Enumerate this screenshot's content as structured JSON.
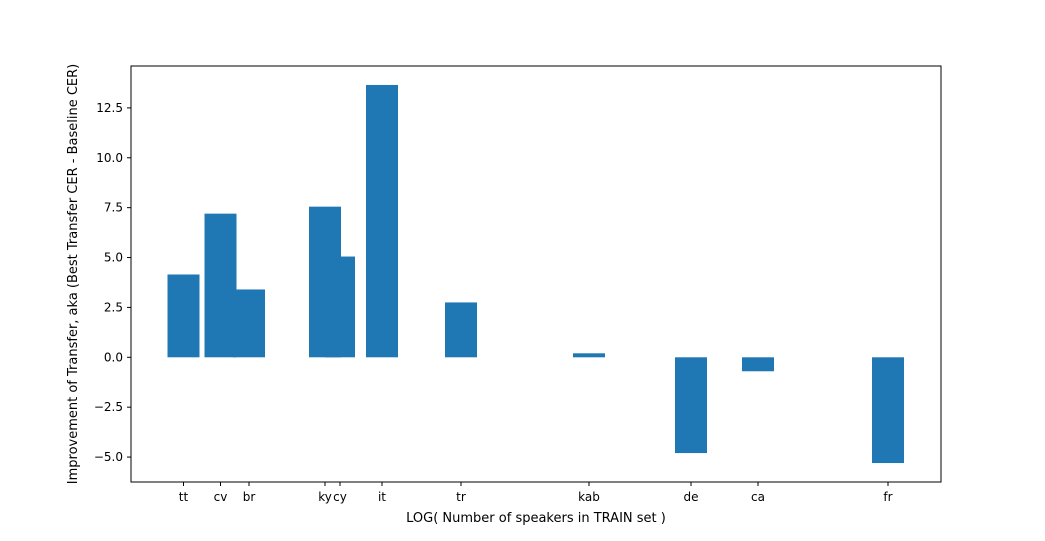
{
  "chart_data": {
    "type": "bar",
    "title": "",
    "xlabel": "LOG( Number of speakers in TRAIN set )",
    "ylabel": "Improvement of Transfer, aka (Best Transfer CER - Baseline CER)",
    "x_scale": "log",
    "x_tick_placement": "each label sits at its bar's x position",
    "ylim": [
      -6.25,
      14.6
    ],
    "yticks": [
      -5.0,
      -2.5,
      0.0,
      2.5,
      5.0,
      7.5,
      10.0,
      12.5
    ],
    "ytick_labels": [
      "−5.0",
      "−2.5",
      "0.0",
      "2.5",
      "5.0",
      "7.5",
      "10.0",
      "12.5"
    ],
    "grid": false,
    "legend": "none",
    "bar_color": "#1f77b4",
    "categories": [
      "tt",
      "cv",
      "br",
      "ky",
      "cy",
      "it",
      "tr",
      "kab",
      "de",
      "ca",
      "fr"
    ],
    "values": [
      4.15,
      7.2,
      3.4,
      7.55,
      5.05,
      13.65,
      2.75,
      0.2,
      -4.8,
      -0.7,
      -5.3
    ]
  }
}
